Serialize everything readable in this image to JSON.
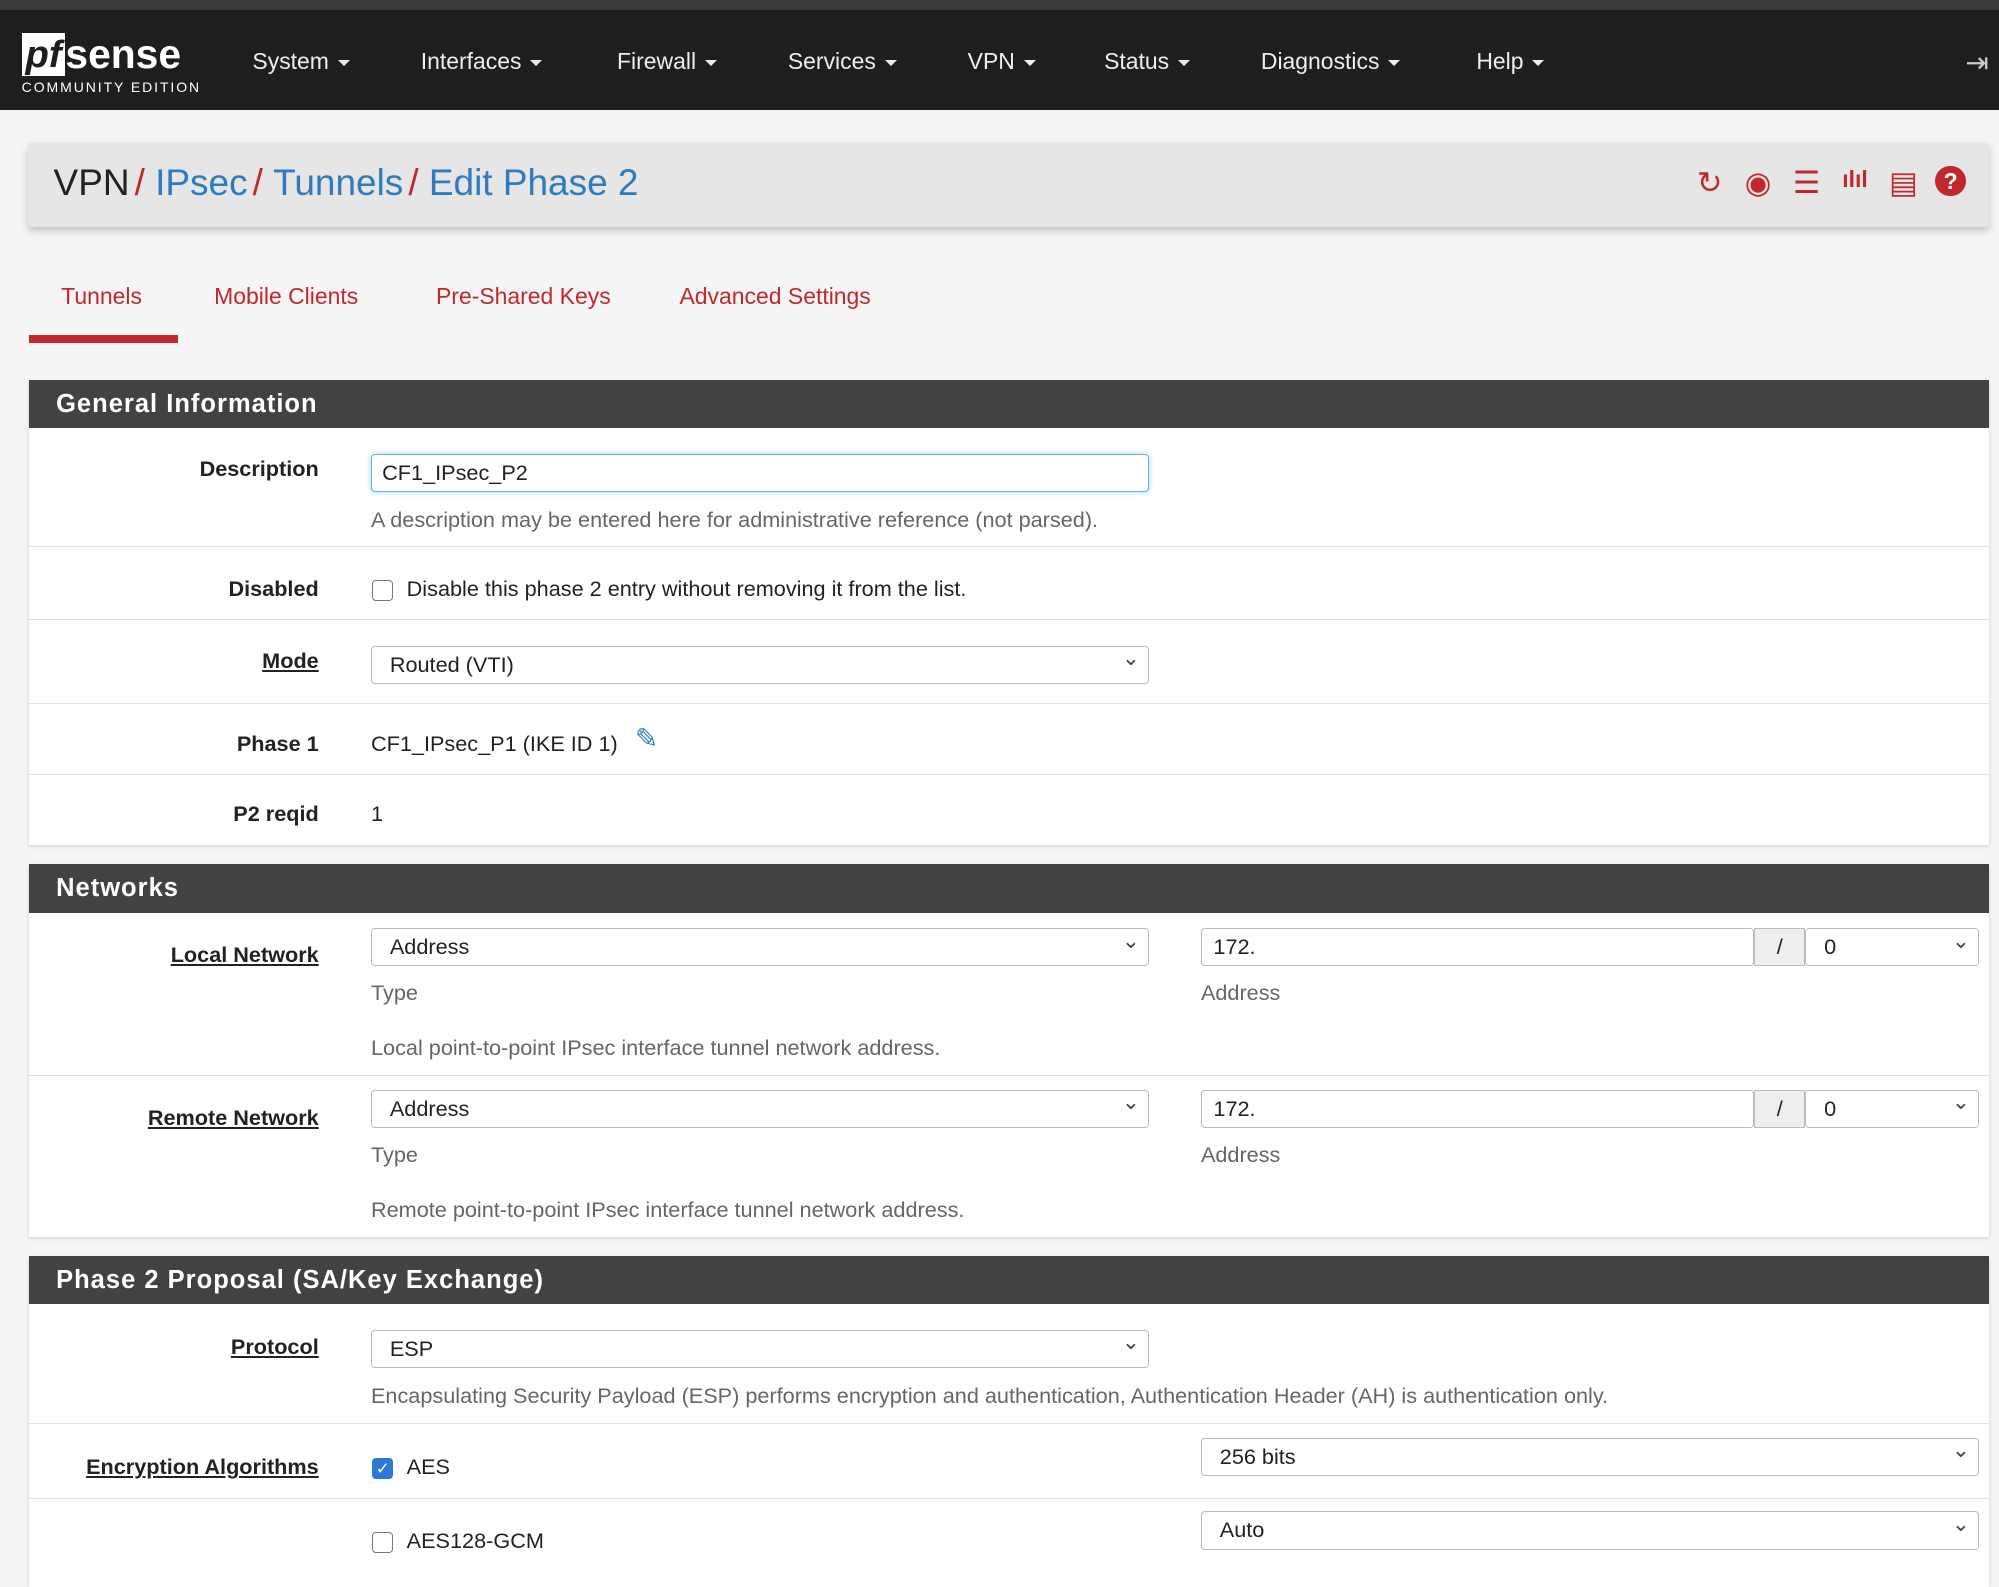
{
  "nav": {
    "logo_text": "pfsense",
    "logo_sub": "COMMUNITY EDITION",
    "items": [
      "System",
      "Interfaces",
      "Firewall",
      "Services",
      "VPN",
      "Status",
      "Diagnostics",
      "Help"
    ],
    "logout_icon": "sign-out-icon"
  },
  "breadcrumb": [
    "VPN",
    "IPsec",
    "Tunnels",
    "Edit Phase 2"
  ],
  "header_icons": [
    "reload-icon",
    "stop-circle-icon",
    "sliders-icon",
    "bar-chart-icon",
    "list-icon",
    "help-circle-icon"
  ],
  "tabs": [
    "Tunnels",
    "Mobile Clients",
    "Pre-Shared Keys",
    "Advanced Settings"
  ],
  "active_tab": "Tunnels",
  "general": {
    "title": "General Information",
    "description_label": "Description",
    "description_value": "CF1_IPsec_P2",
    "description_help": "A description may be entered here for administrative reference (not parsed).",
    "disabled_label": "Disabled",
    "disabled_text": "Disable this phase 2 entry without removing it from the list.",
    "disabled_checked": false,
    "mode_label": "Mode",
    "mode_value": "Routed (VTI)",
    "phase1_label": "Phase 1",
    "phase1_value": "CF1_IPsec_P1 (IKE ID 1)",
    "reqid_label": "P2 reqid",
    "reqid_value": "1"
  },
  "networks": {
    "title": "Networks",
    "local_label": "Local Network",
    "local_type": "Address",
    "local_address": "172.",
    "local_mask": "0",
    "local_help": "Local point-to-point IPsec interface tunnel network address.",
    "remote_label": "Remote Network",
    "remote_type": "Address",
    "remote_address": "172.",
    "remote_mask": "0",
    "remote_help": "Remote point-to-point IPsec interface tunnel network address.",
    "type_caption": "Type",
    "address_caption": "Address",
    "slash": "/"
  },
  "phase2": {
    "title": "Phase 2 Proposal (SA/Key Exchange)",
    "protocol_label": "Protocol",
    "protocol_value": "ESP",
    "protocol_help": "Encapsulating Security Payload (ESP) performs encryption and authentication, Authentication Header (AH) is authentication only.",
    "enc_label": "Encryption Algorithms",
    "algorithms": [
      {
        "name": "AES",
        "checked": true,
        "keylen": "256 bits"
      },
      {
        "name": "AES128-GCM",
        "checked": false,
        "keylen": "Auto"
      }
    ]
  },
  "colors": {
    "accent": "#c0282d",
    "link": "#2f7bbf",
    "navbar": "#1e1e1e",
    "section_header": "#424242"
  }
}
